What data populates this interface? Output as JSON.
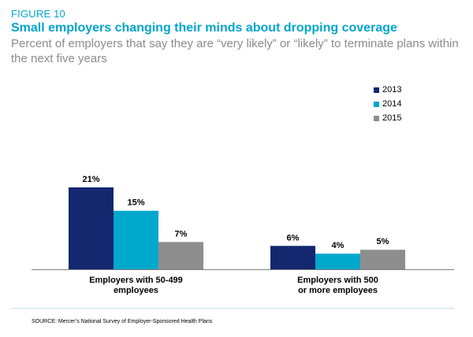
{
  "figure_label": "FIGURE 10",
  "title": "Small employers changing their minds about dropping coverage",
  "subtitle": "Percent of employers that say they are “very likely” or “likely” to terminate plans within the next five years",
  "source": "SOURCE: Mercer’s National Survey of Employer-Sponsored Health Plans",
  "colors": {
    "2013": "#13286e",
    "2014": "#00a8cc",
    "2015": "#8e8e8e",
    "accent": "#00a5cd"
  },
  "chart_data": {
    "type": "bar",
    "categories": [
      "Employers with 50-499\nemployees",
      "Employers with 500\nor more employees"
    ],
    "series": [
      {
        "name": "2013",
        "values": [
          21,
          6
        ],
        "labels": [
          "21%",
          "6%"
        ]
      },
      {
        "name": "2014",
        "values": [
          15,
          4
        ],
        "labels": [
          "15%",
          "4%"
        ]
      },
      {
        "name": "2015",
        "values": [
          7,
          5
        ],
        "labels": [
          "7%",
          "5%"
        ]
      }
    ],
    "unit": "%",
    "ylim": [
      0,
      21
    ],
    "grid": false,
    "legend_position": "top-right"
  }
}
